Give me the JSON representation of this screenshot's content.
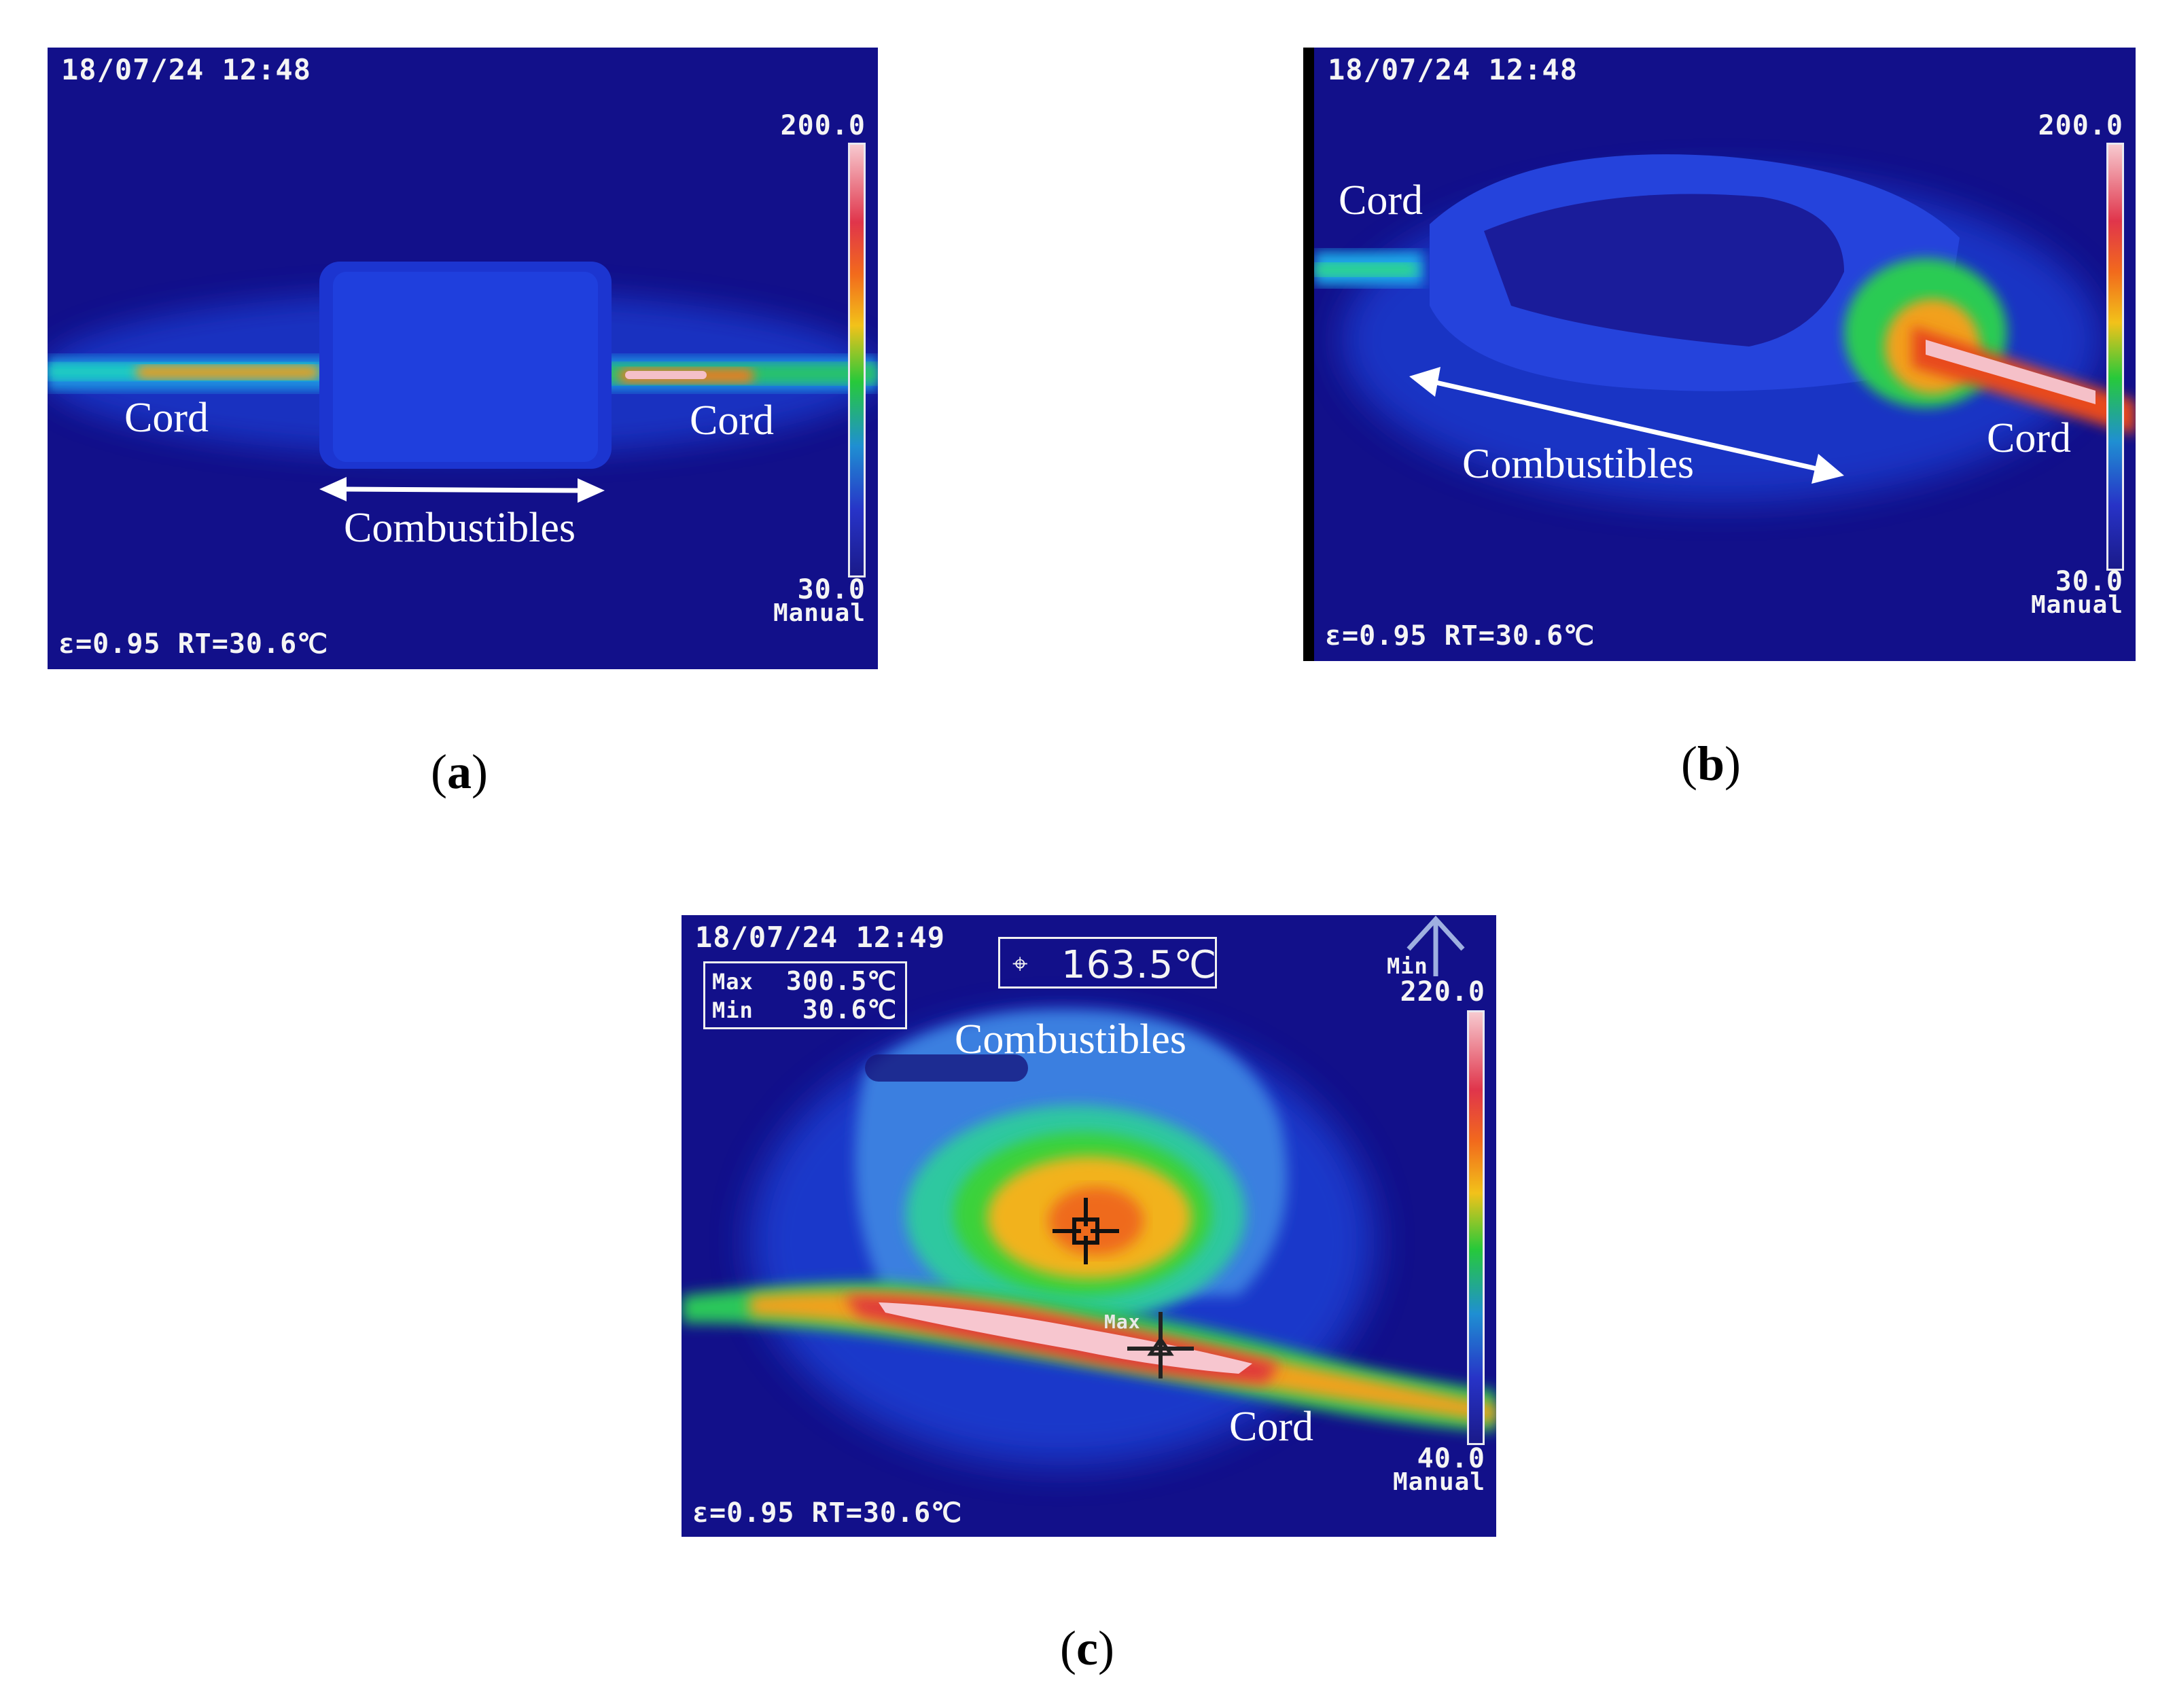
{
  "panels": {
    "a": {
      "timestamp": "18/07/24 12:48",
      "scale_max": "200.0",
      "scale_min": "30.0",
      "mode": "Manual",
      "footer": "ε=0.95 RT=30.6℃",
      "cord_left": "Cord",
      "cord_right": "Cord",
      "combustibles": "Combustibles",
      "caption_open": "(",
      "caption_letter": "a",
      "caption_close": ")"
    },
    "b": {
      "timestamp": "18/07/24 12:48",
      "scale_max": "200.0",
      "scale_min": "30.0",
      "mode": "Manual",
      "footer": "ε=0.95 RT=30.6℃",
      "cord_left": "Cord",
      "cord_right": "Cord",
      "combustibles": "Combustibles",
      "caption_open": "(",
      "caption_letter": "b",
      "caption_close": ")"
    },
    "c": {
      "timestamp": "18/07/24 12:49",
      "max_label": "Max",
      "max_value": "300.5℃",
      "min_label": "Min",
      "min_value": "30.6℃",
      "spot_value": "163.5℃",
      "scale_mode_label": "Min",
      "scale_max": "220.0",
      "scale_min": "40.0",
      "mode": "Manual",
      "footer": "ε=0.95 RT=30.6℃",
      "combustibles": "Combustibles",
      "cord": "Cord",
      "max_marker": "Max",
      "caption_open": "(",
      "caption_letter": "c",
      "caption_close": ")"
    }
  },
  "colors": {
    "background": "#12108a",
    "annotation": "#ffffff",
    "hot": "#f5b8c4",
    "warm": "#f2a01a",
    "mid": "#27c93a"
  }
}
